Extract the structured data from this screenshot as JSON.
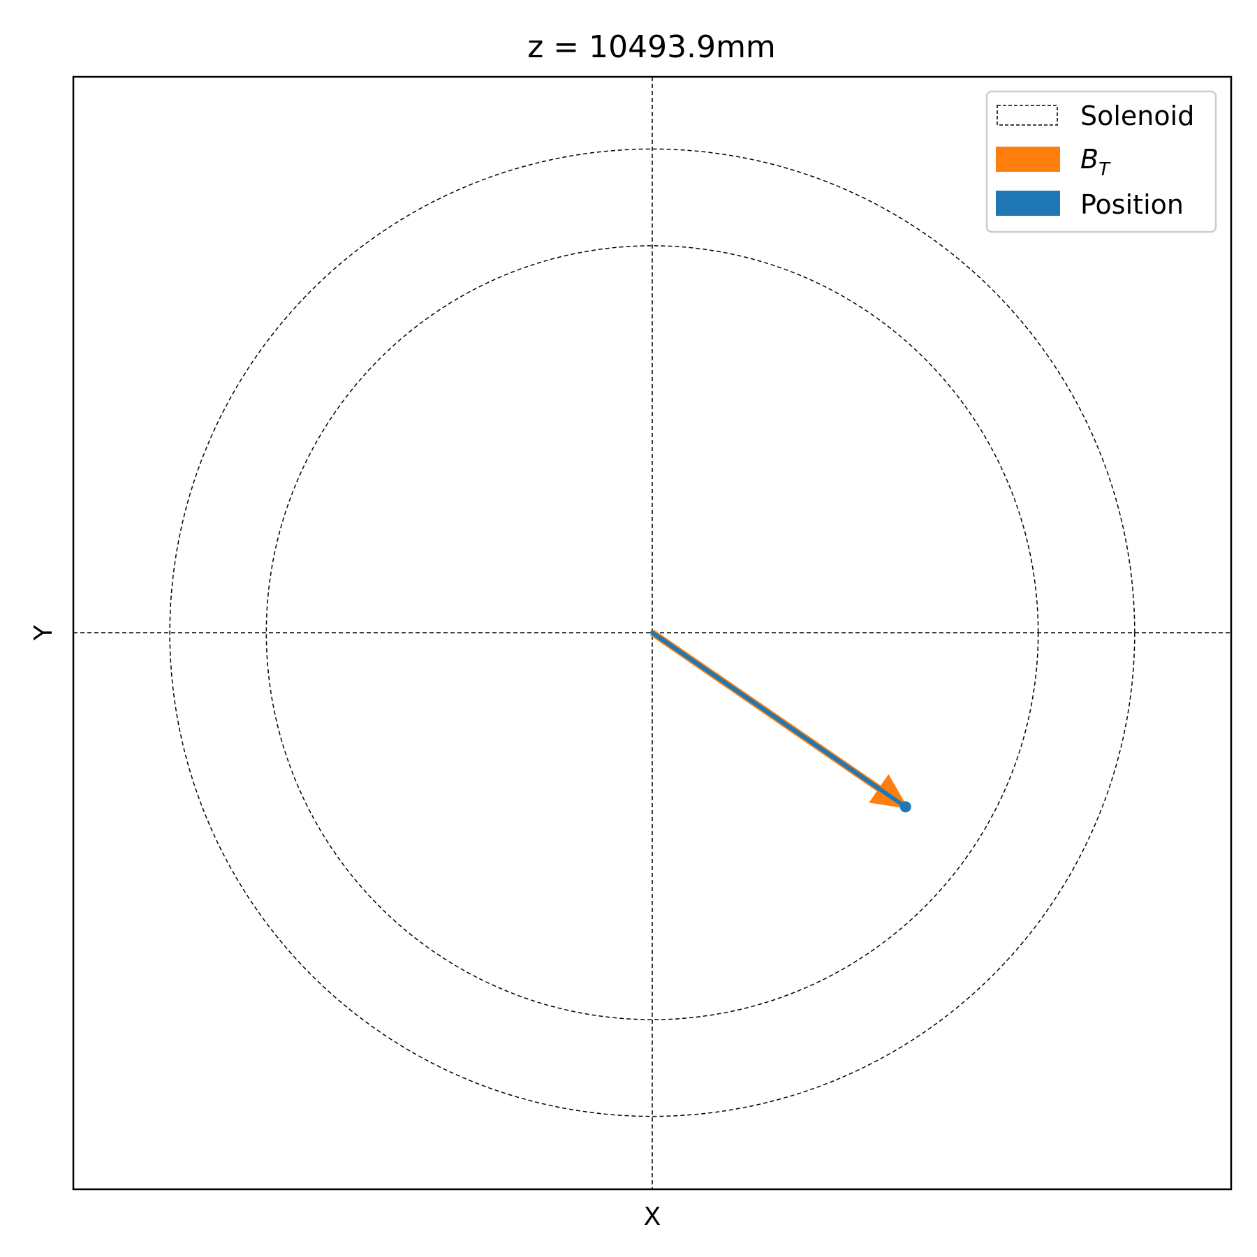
{
  "chart_data": {
    "type": "vector",
    "title": "z = 10493.9mm",
    "xlabel": "X",
    "ylabel": "Y",
    "xlim": [
      -1.2,
      1.2
    ],
    "ylim": [
      -1.15,
      1.15
    ],
    "ticks_visible": false,
    "grid": false,
    "crosshair_lines": {
      "x": 0,
      "y": 0,
      "style": "dashed",
      "color": "#000000"
    },
    "solenoid_radii": [
      0.8,
      1.0
    ],
    "vectors": [
      {
        "name": "B_T",
        "origin": [
          0,
          0
        ],
        "components": [
          0.525,
          -0.36
        ],
        "color": "#ff7f0e"
      },
      {
        "name": "Position",
        "origin": [
          0,
          0
        ],
        "components": [
          0.525,
          -0.36
        ],
        "color": "#1f77b4"
      }
    ],
    "legend": {
      "placement": "top-right",
      "entries": [
        {
          "label": "Solenoid",
          "style": "dashed-box",
          "color": "#000000"
        },
        {
          "label_main": "B",
          "label_sub": "T",
          "style": "patch",
          "color": "#ff7f0e"
        },
        {
          "label": "Position",
          "style": "patch",
          "color": "#1f77b4"
        }
      ]
    }
  }
}
